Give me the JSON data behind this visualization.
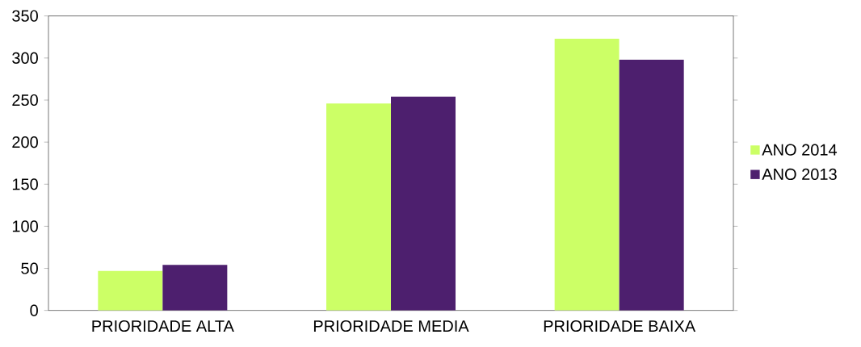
{
  "chart_data": {
    "type": "bar",
    "categories": [
      "PRIORIDADE ALTA",
      "PRIORIDADE MEDIA",
      "PRIORIDADE BAIXA"
    ],
    "series": [
      {
        "name": "ANO 2014",
        "color": "#ccff66",
        "values": [
          47,
          246,
          323
        ]
      },
      {
        "name": "ANO 2013",
        "color": "#4d1f6e",
        "values": [
          54,
          254,
          298
        ]
      }
    ],
    "ylim": [
      0,
      350
    ],
    "yticks": [
      0,
      50,
      100,
      150,
      200,
      250,
      300,
      350
    ],
    "grid": false,
    "legend": "right"
  }
}
